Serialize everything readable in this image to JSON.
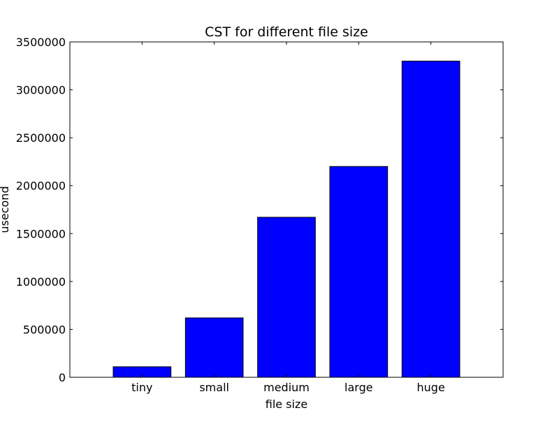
{
  "chart_data": {
    "type": "bar",
    "title": "CST for different file size",
    "xlabel": "file size",
    "ylabel": "usecond",
    "categories": [
      "tiny",
      "small",
      "medium",
      "large",
      "huge"
    ],
    "values": [
      110000,
      620000,
      1670000,
      2200000,
      3300000
    ],
    "ylim": [
      0,
      3500000
    ],
    "yticks": [
      0,
      500000,
      1000000,
      1500000,
      2000000,
      2500000,
      3000000,
      3500000
    ],
    "ytick_labels": [
      "0",
      "500000",
      "1000000",
      "1500000",
      "2000000",
      "2500000",
      "3000000",
      "3500000"
    ],
    "bar_color": "#0000ff",
    "edge_color": "#000000",
    "grid": false
  }
}
